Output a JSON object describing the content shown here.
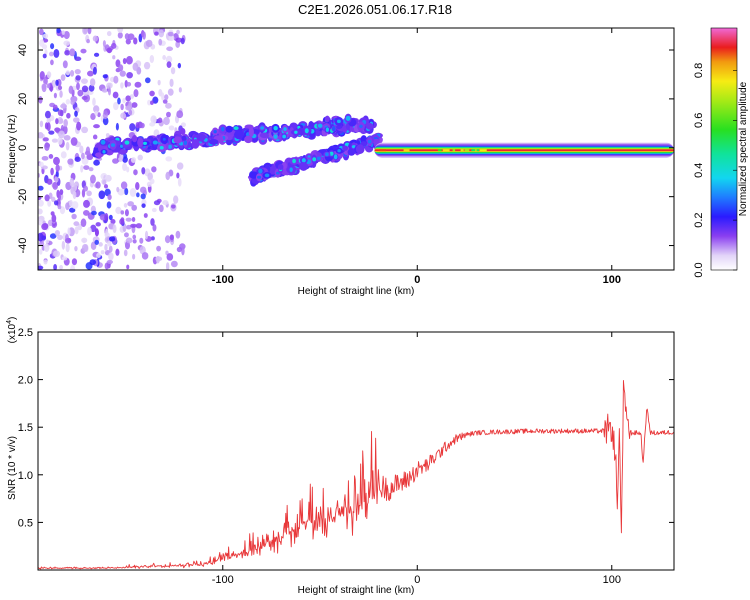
{
  "title": "C2E1.2026.051.06.17.R18",
  "colors": {
    "snr_line": "#e8383a",
    "frame": "#000000"
  },
  "chart_data": [
    {
      "type": "heatmap",
      "title": "C2E1.2026.051.06.17.R18",
      "xlabel": "Height of straight line (km)",
      "ylabel": "Frequency (Hz)",
      "xlim": [
        -195,
        132
      ],
      "ylim": [
        -50,
        49
      ],
      "x_ticks": [
        -100,
        0,
        100
      ],
      "x_tick_labels": [
        "-100",
        "0",
        "100"
      ],
      "y_ticks": [
        -40,
        -20,
        0,
        20,
        40
      ],
      "y_tick_labels": [
        "-40",
        "-20",
        "0",
        "20",
        "40"
      ],
      "colorbar": {
        "label": "Normalized spectral amplitude",
        "range": [
          0,
          0.97
        ],
        "ticks": [
          0,
          0.2,
          0.4,
          0.6,
          0.8
        ],
        "tick_labels": [
          "0.0",
          "0.2",
          "0.4",
          "0.6",
          "0.8"
        ]
      },
      "features": [
        {
          "name": "scattered noise",
          "x_range": [
            -195,
            -120
          ],
          "freq_range": [
            -50,
            49
          ],
          "amplitude": 0.1
        },
        {
          "name": "upper branch",
          "x_range": [
            -165,
            -22
          ],
          "freq_at_start": 0,
          "freq_at_end": 10,
          "amplitude": 0.25
        },
        {
          "name": "lower branch",
          "x_range": [
            -85,
            -20
          ],
          "freq_at_start": -12,
          "freq_at_end": 3,
          "amplitude": 0.25
        },
        {
          "name": "stable tone",
          "x_range": [
            -22,
            132
          ],
          "freq_hz": -1,
          "amplitude": 0.9
        }
      ]
    },
    {
      "type": "line",
      "xlabel": "Height of straight line (km)",
      "ylabel": "SNR (10 * v/v)",
      "y_scale_label": "(x10",
      "y_scale_exponent": "4",
      "xlim": [
        -195,
        132
      ],
      "ylim": [
        0,
        2.5
      ],
      "x_ticks": [
        -100,
        0,
        100
      ],
      "x_tick_labels": [
        "-100",
        "0",
        "100"
      ],
      "y_ticks": [
        0.5,
        1.0,
        1.5,
        2.0,
        2.5
      ],
      "y_tick_labels": [
        "0.5",
        "1.0",
        "1.5",
        "2.0",
        "2.5"
      ],
      "series": [
        {
          "name": "SNR",
          "x": [
            -195,
            -160,
            -130,
            -110,
            -100,
            -90,
            -80,
            -70,
            -60,
            -50,
            -40,
            -35,
            -30,
            -25,
            -20,
            -15,
            -10,
            -5,
            0,
            5,
            10,
            15,
            20,
            25,
            30,
            40,
            60,
            80,
            95,
            100,
            102,
            103,
            104,
            105,
            106,
            108,
            112,
            115,
            116,
            118,
            120,
            125,
            132
          ],
          "values": [
            0.02,
            0.02,
            0.04,
            0.06,
            0.12,
            0.18,
            0.25,
            0.35,
            0.48,
            0.55,
            0.6,
            0.65,
            0.7,
            0.78,
            0.88,
            0.85,
            0.9,
            0.95,
            1.05,
            1.1,
            1.2,
            1.3,
            1.38,
            1.42,
            1.44,
            1.45,
            1.46,
            1.46,
            1.46,
            1.48,
            1.2,
            0.55,
            1.65,
            0.25,
            1.95,
            1.44,
            1.44,
            1.44,
            1.1,
            1.7,
            1.44,
            1.44,
            1.45
          ]
        }
      ]
    }
  ]
}
